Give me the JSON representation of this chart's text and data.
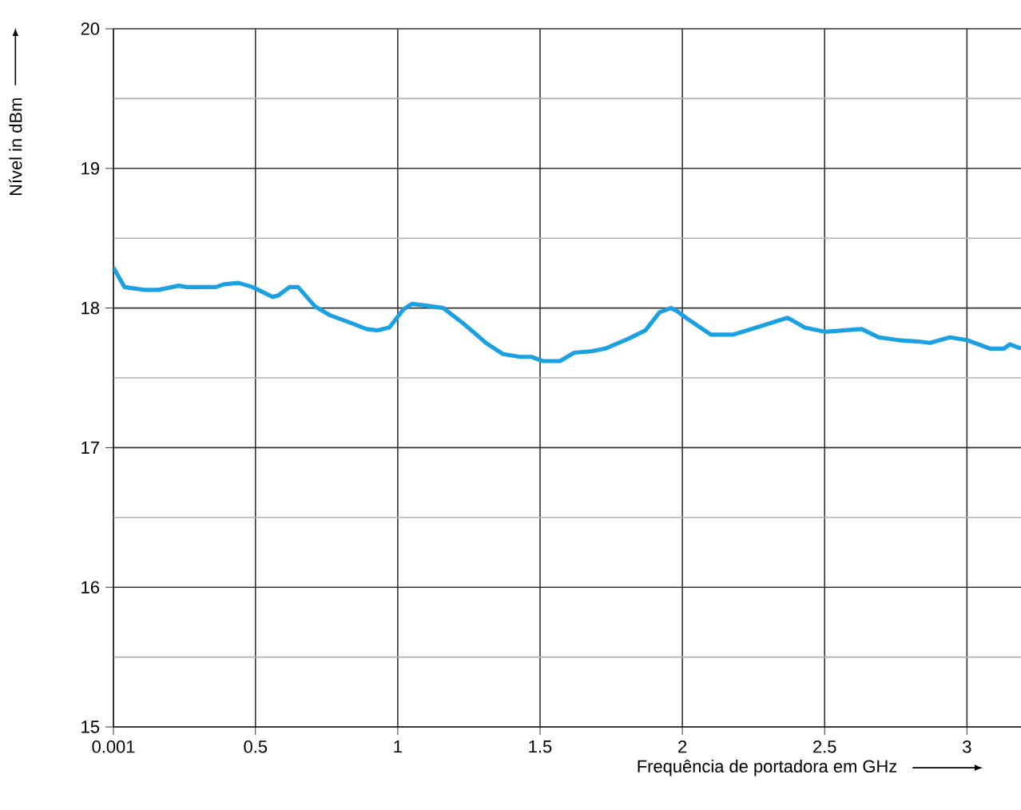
{
  "chart_data": {
    "type": "line",
    "xlabel": "Frequência de portadora em GHz",
    "ylabel": "Nível in dBm",
    "xlim": [
      0.001,
      3.19
    ],
    "ylim": [
      15,
      20
    ],
    "xticks": [
      0.001,
      0.5,
      1,
      1.5,
      2,
      2.5,
      3
    ],
    "yticks": [
      15,
      {
        "value": 15.5,
        "label": null
      },
      16,
      {
        "value": 16.5,
        "label": null
      },
      17,
      {
        "value": 17.5,
        "label": null
      },
      18,
      {
        "value": 18.5,
        "label": null
      },
      19,
      {
        "value": 19.5,
        "label": null
      },
      20
    ],
    "grid": true,
    "marker": "none",
    "line_style": "solid",
    "series": [
      {
        "color": "#1ba1e2",
        "x": [
          0.001,
          0.04,
          0.11,
          0.16,
          0.23,
          0.26,
          0.36,
          0.39,
          0.44,
          0.49,
          0.56,
          0.58,
          0.62,
          0.65,
          0.71,
          0.76,
          0.84,
          0.89,
          0.93,
          0.97,
          1.02,
          1.05,
          1.09,
          1.16,
          1.23,
          1.31,
          1.37,
          1.43,
          1.47,
          1.51,
          1.57,
          1.62,
          1.68,
          1.73,
          1.81,
          1.87,
          1.92,
          1.96,
          1.98,
          2.02,
          2.1,
          2.18,
          2.26,
          2.37,
          2.43,
          2.5,
          2.63,
          2.69,
          2.76,
          2.83,
          2.87,
          2.94,
          3.0,
          3.08,
          3.13,
          3.15,
          3.19
        ],
        "values": [
          18.29,
          18.15,
          18.13,
          18.13,
          18.16,
          18.15,
          18.15,
          18.17,
          18.18,
          18.15,
          18.08,
          18.09,
          18.15,
          18.15,
          18.01,
          17.95,
          17.89,
          17.85,
          17.84,
          17.86,
          17.99,
          18.03,
          18.02,
          18.0,
          17.89,
          17.75,
          17.67,
          17.65,
          17.65,
          17.62,
          17.62,
          17.68,
          17.69,
          17.71,
          17.78,
          17.84,
          17.97,
          18.0,
          17.98,
          17.92,
          17.81,
          17.81,
          17.86,
          17.93,
          17.86,
          17.83,
          17.85,
          17.79,
          17.77,
          17.76,
          17.75,
          17.79,
          17.77,
          17.71,
          17.71,
          17.74,
          17.71
        ]
      }
    ]
  }
}
